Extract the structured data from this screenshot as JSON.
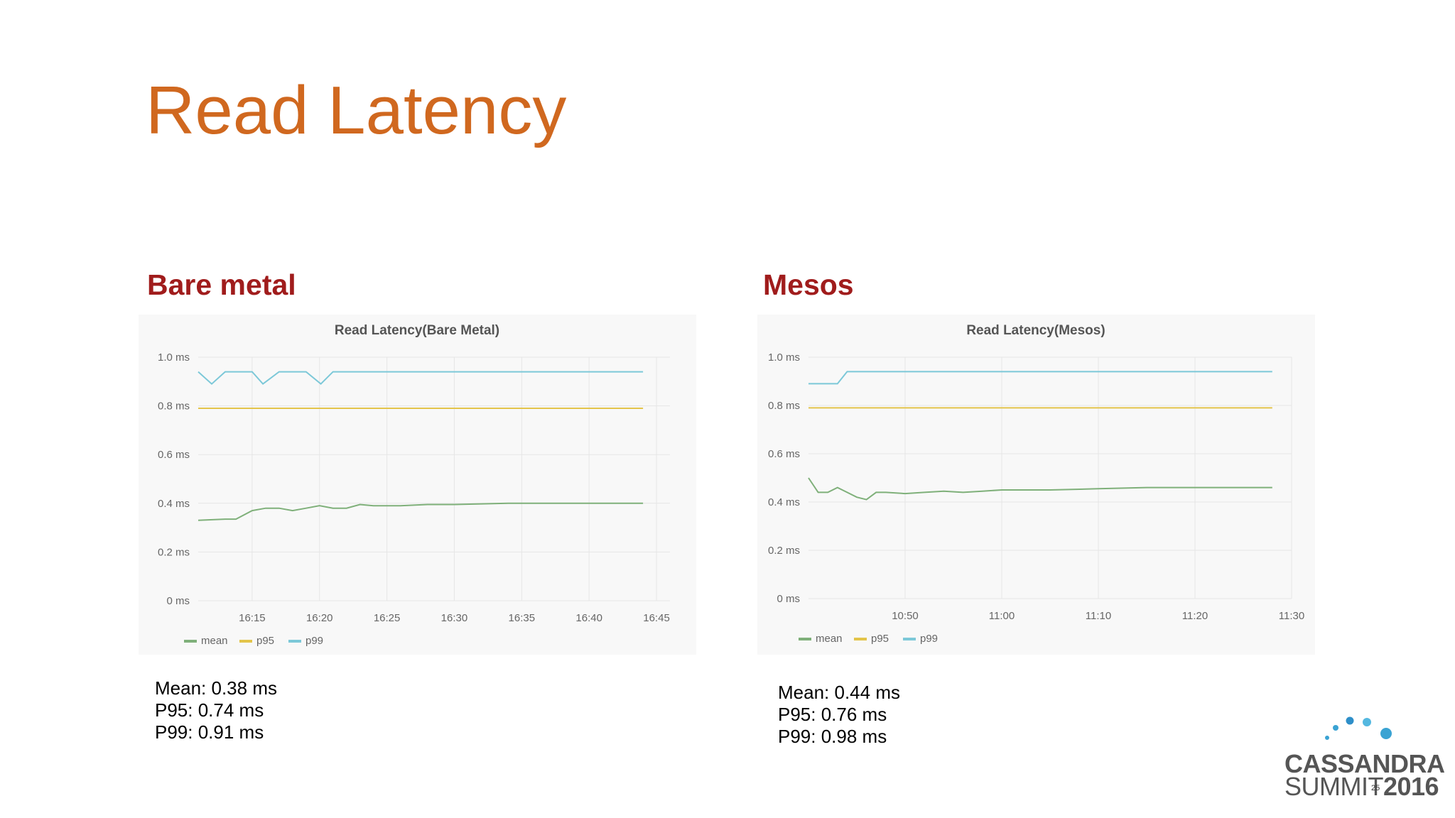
{
  "slide": {
    "title": "Read Latency",
    "page_number": "25"
  },
  "sections": {
    "left_heading": "Bare metal",
    "right_heading": "Mesos"
  },
  "stats": {
    "left": [
      "Mean: 0.38 ms",
      "P95: 0.74 ms",
      "P99: 0.91 ms"
    ],
    "right": [
      "Mean: 0.44 ms",
      "P95: 0.76 ms",
      "P99: 0.98 ms"
    ]
  },
  "logo": {
    "line1": "CASSANDRA",
    "line2_a": "SUMMIT",
    "line2_b": "2016",
    "dot_colors": [
      "#3aa3d3",
      "#2e8fc9",
      "#54b8e0",
      "#1f7ab8",
      "#3aa3d3"
    ]
  },
  "colors": {
    "mean": "#7fb07a",
    "p95": "#e3c44a",
    "p99": "#7cc8d8",
    "title": "#d0681f",
    "heading": "#a01c1c"
  },
  "chart_data": [
    {
      "type": "line",
      "title": "Read Latency(Bare Metal)",
      "x_ticks": [
        "16:15",
        "16:20",
        "16:25",
        "16:30",
        "16:35",
        "16:40",
        "16:45"
      ],
      "xlim_minutes": [
        11,
        46
      ],
      "y_ticks": [
        "0 ms",
        "0.2 ms",
        "0.4 ms",
        "0.6 ms",
        "0.8 ms",
        "1.0 ms"
      ],
      "ylim": [
        0,
        1.0
      ],
      "legend": "bottom-left",
      "grid": true,
      "series": [
        {
          "name": "mean",
          "x": [
            11,
            13,
            13.8,
            15,
            16,
            17,
            18,
            19,
            20,
            21,
            22,
            23,
            24,
            26,
            28,
            30,
            34,
            40,
            44
          ],
          "y": [
            0.33,
            0.335,
            0.335,
            0.37,
            0.38,
            0.38,
            0.37,
            0.38,
            0.39,
            0.38,
            0.38,
            0.395,
            0.39,
            0.39,
            0.395,
            0.395,
            0.4,
            0.4,
            0.4
          ]
        },
        {
          "name": "p95",
          "x": [
            11,
            44
          ],
          "y": [
            0.79,
            0.79
          ]
        },
        {
          "name": "p99",
          "x": [
            11,
            12,
            13,
            15,
            15.8,
            17,
            19,
            20.1,
            21,
            44
          ],
          "y": [
            0.94,
            0.89,
            0.94,
            0.94,
            0.89,
            0.94,
            0.94,
            0.89,
            0.94,
            0.94
          ]
        }
      ]
    },
    {
      "type": "line",
      "title": "Read Latency(Mesos)",
      "x_ticks": [
        "10:50",
        "11:00",
        "11:10",
        "11:20",
        "11:30"
      ],
      "xlim_minutes": [
        40,
        90
      ],
      "y_ticks": [
        "0 ms",
        "0.2 ms",
        "0.4 ms",
        "0.6 ms",
        "0.8 ms",
        "1.0 ms"
      ],
      "ylim": [
        0,
        1.0
      ],
      "legend": "bottom-left",
      "grid": true,
      "series": [
        {
          "name": "mean",
          "x": [
            40,
            41,
            42,
            43,
            44,
            45,
            46,
            47,
            48,
            50,
            52,
            54,
            56,
            58,
            60,
            65,
            70,
            75,
            80,
            85,
            88
          ],
          "y": [
            0.5,
            0.44,
            0.44,
            0.46,
            0.44,
            0.42,
            0.41,
            0.44,
            0.44,
            0.435,
            0.44,
            0.445,
            0.44,
            0.445,
            0.45,
            0.45,
            0.455,
            0.46,
            0.46,
            0.46,
            0.46
          ]
        },
        {
          "name": "p95",
          "x": [
            40,
            88
          ],
          "y": [
            0.79,
            0.79
          ]
        },
        {
          "name": "p99",
          "x": [
            40,
            43,
            44,
            88
          ],
          "y": [
            0.89,
            0.89,
            0.94,
            0.94
          ]
        }
      ]
    }
  ]
}
